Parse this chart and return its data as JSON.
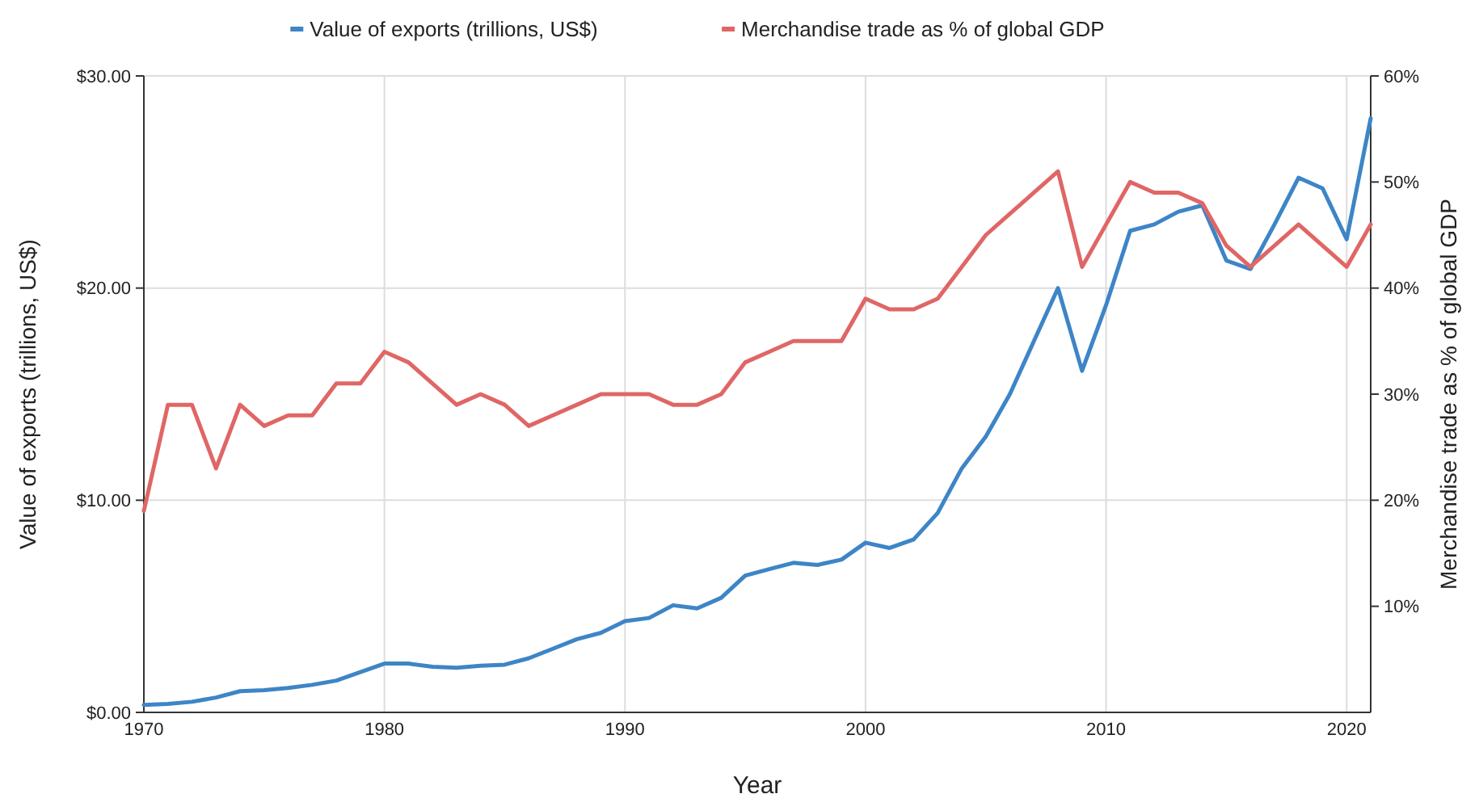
{
  "chart_data": {
    "type": "line",
    "xlabel": "Year",
    "ylabel": "Value of exports (trillions, US$)",
    "y2label": "Merchandise trade as % of global GDP",
    "x": [
      1970,
      1971,
      1972,
      1973,
      1974,
      1975,
      1976,
      1977,
      1978,
      1979,
      1980,
      1981,
      1982,
      1983,
      1984,
      1985,
      1986,
      1987,
      1988,
      1989,
      1990,
      1991,
      1992,
      1993,
      1994,
      1995,
      1996,
      1997,
      1998,
      1999,
      2000,
      2001,
      2002,
      2003,
      2004,
      2005,
      2006,
      2007,
      2008,
      2009,
      2010,
      2011,
      2012,
      2013,
      2014,
      2015,
      2016,
      2017,
      2018,
      2019,
      2020,
      2021
    ],
    "xlim": [
      1970,
      2021
    ],
    "xticks": [
      1970,
      1980,
      1990,
      2000,
      2010,
      2020
    ],
    "ylim": [
      0,
      30
    ],
    "yticks": [
      {
        "value": 0,
        "label": "$0.00"
      },
      {
        "value": 10,
        "label": "$10.00"
      },
      {
        "value": 20,
        "label": "$20.00"
      },
      {
        "value": 30,
        "label": "$30.00"
      }
    ],
    "y2lim": [
      0,
      60
    ],
    "y2ticks": [
      {
        "value": 10,
        "label": "10%"
      },
      {
        "value": 20,
        "label": "20%"
      },
      {
        "value": 30,
        "label": "30%"
      },
      {
        "value": 40,
        "label": "40%"
      },
      {
        "value": 50,
        "label": "50%"
      },
      {
        "value": 60,
        "label": "60%"
      }
    ],
    "grid": true,
    "legend": "top",
    "marker": "none",
    "line_style": "solid",
    "series": [
      {
        "name": "Value of exports (trillions, US$)",
        "color": "#3d85c6",
        "values": [
          0.35,
          0.4,
          0.5,
          0.7,
          1.0,
          1.05,
          1.15,
          1.3,
          1.5,
          1.9,
          2.3,
          2.3,
          2.15,
          2.1,
          2.2,
          2.25,
          2.55,
          3.0,
          3.45,
          3.75,
          4.3,
          4.45,
          5.05,
          4.9,
          5.4,
          6.45,
          6.75,
          7.05,
          6.95,
          7.2,
          8.0,
          7.75,
          8.15,
          9.4,
          11.5,
          13.0,
          15.0,
          17.5,
          20.0,
          16.1,
          19.2,
          22.7,
          23.0,
          23.6,
          23.9,
          21.3,
          20.9,
          23.0,
          25.2,
          24.7,
          22.3,
          28.0
        ]
      },
      {
        "name": "Merchandise trade as % of global GDP",
        "color": "#e06666",
        "axis": "y2",
        "values": [
          19,
          29,
          29,
          23,
          29,
          27,
          28,
          28,
          31,
          31,
          34,
          33,
          31,
          29,
          30,
          29,
          27,
          28,
          29,
          30,
          30,
          30,
          29,
          29,
          30,
          33,
          34,
          35,
          35,
          35,
          39,
          38,
          38,
          39,
          42,
          45,
          47,
          49,
          51,
          42,
          46,
          50,
          49,
          49,
          48,
          44,
          42,
          44,
          46,
          44,
          42,
          46
        ]
      }
    ]
  }
}
